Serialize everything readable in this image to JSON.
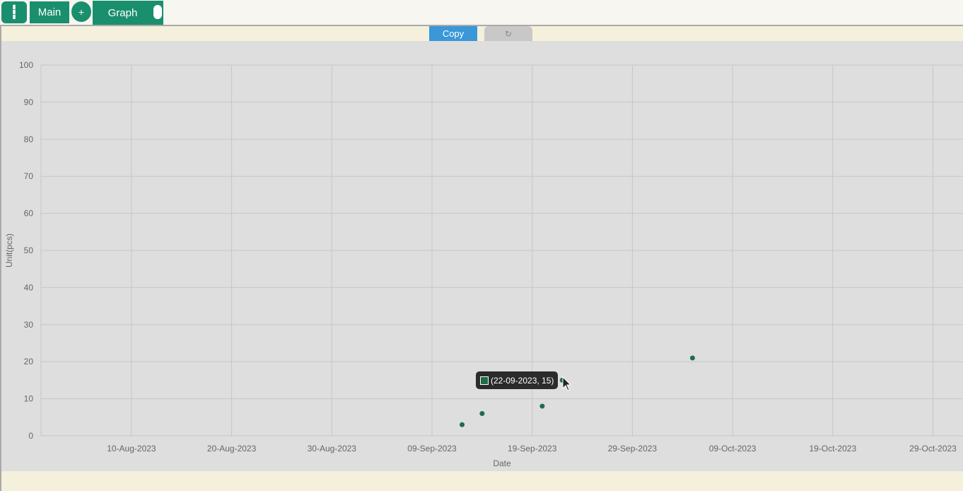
{
  "tabs": {
    "menu_icon": "┇",
    "main_label": "Main",
    "add_label": "+",
    "graph_label": "Graph"
  },
  "toolbar": {
    "copy_label": "Copy",
    "refresh_icon": "↻"
  },
  "colors": {
    "accent": "#1a8f6e",
    "copy": "#3a97d8",
    "point": "#1f6b4a"
  },
  "tooltip": {
    "text": "(22-09-2023, 15)"
  },
  "chart_data": {
    "type": "scatter",
    "xlabel": "Date",
    "ylabel": "Unit(pcs)",
    "x_ticks": [
      "10-Aug-2023",
      "20-Aug-2023",
      "30-Aug-2023",
      "09-Sep-2023",
      "19-Sep-2023",
      "29-Sep-2023",
      "09-Oct-2023",
      "19-Oct-2023",
      "29-Oct-2023"
    ],
    "xlim": [
      "2023-08-01",
      "2023-10-31"
    ],
    "ylim": [
      0,
      100
    ],
    "y_ticks": [
      0,
      10,
      20,
      30,
      40,
      50,
      60,
      70,
      80,
      90,
      100
    ],
    "grid": true,
    "points": [
      {
        "x": "2023-09-12",
        "y": 3
      },
      {
        "x": "2023-09-14",
        "y": 6
      },
      {
        "x": "2023-09-20",
        "y": 8
      },
      {
        "x": "2023-09-22",
        "y": 15
      },
      {
        "x": "2023-10-05",
        "y": 21
      }
    ]
  }
}
